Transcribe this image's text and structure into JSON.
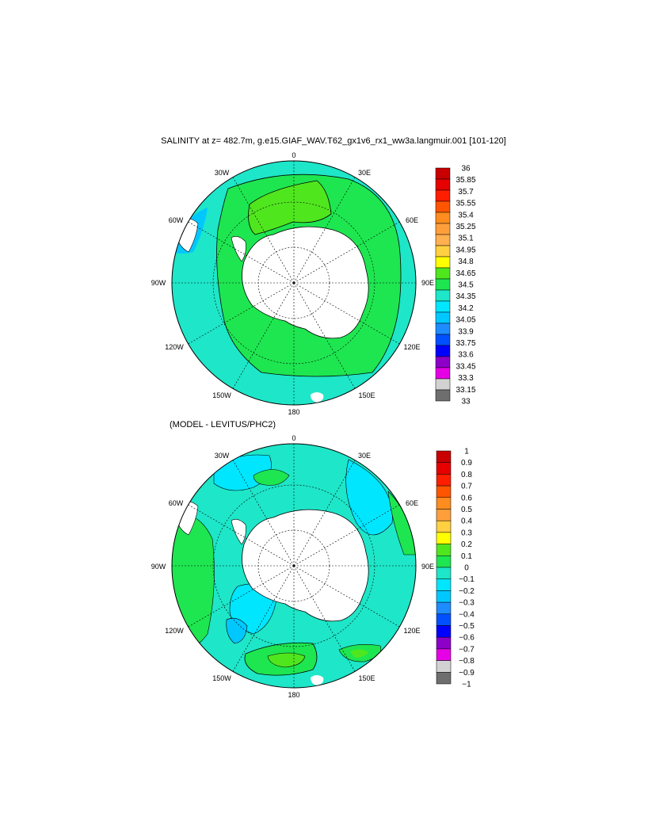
{
  "panels": [
    {
      "id": "salinity",
      "title": "SALINITY at z= 482.7m, g.e15.GIAF_WAV.T62_gx1v6_rx1_ww3a.langmuir.001 [101-120]",
      "lon_labels": [
        "0",
        "30E",
        "60E",
        "90E",
        "120E",
        "150E",
        "180",
        "150W",
        "120W",
        "90W",
        "60W",
        "30W"
      ],
      "colorbar": {
        "labels": [
          "36",
          "35.85",
          "35.7",
          "35.55",
          "35.4",
          "35.25",
          "35.1",
          "34.95",
          "34.8",
          "34.65",
          "34.5",
          "34.35",
          "34.2",
          "34.05",
          "33.9",
          "33.75",
          "33.6",
          "33.45",
          "33.3",
          "33.15",
          "33"
        ],
        "colors": [
          "#c80000",
          "#e60000",
          "#ff1e00",
          "#ff5500",
          "#ff8c1e",
          "#ff9f3c",
          "#ffb050",
          "#ffd040",
          "#ffff00",
          "#50e61e",
          "#1ee650",
          "#1ee6c8",
          "#00e6ff",
          "#00c8ff",
          "#1e8cff",
          "#0050ff",
          "#0000ff",
          "#8c00c8",
          "#e600e6",
          "#d2d2d2",
          "#6e6e6e"
        ]
      }
    },
    {
      "id": "difference",
      "title": "(MODEL - LEVITUS/PHC2)",
      "lon_labels": [
        "0",
        "30E",
        "60E",
        "90E",
        "120E",
        "150E",
        "180",
        "150W",
        "120W",
        "90W",
        "60W",
        "30W"
      ],
      "colorbar": {
        "labels": [
          "1",
          "0.9",
          "0.8",
          "0.7",
          "0.6",
          "0.5",
          "0.4",
          "0.3",
          "0.2",
          "0.1",
          "0",
          "−0.1",
          "−0.2",
          "−0.3",
          "−0.4",
          "−0.5",
          "−0.6",
          "−0.7",
          "−0.8",
          "−0.9",
          "−1"
        ],
        "colors": [
          "#c80000",
          "#e60000",
          "#ff1e00",
          "#ff5500",
          "#ff8c1e",
          "#ff9f3c",
          "#ffd040",
          "#ffff00",
          "#50e61e",
          "#1ee650",
          "#1ee6c8",
          "#00e6ff",
          "#00c8ff",
          "#1e8cff",
          "#0050ff",
          "#0000ff",
          "#8c00c8",
          "#e600e6",
          "#d2d2d2",
          "#6e6e6e"
        ]
      }
    }
  ],
  "colors": {
    "land": "#ffffff",
    "ocean_green": "#1ee650",
    "ocean_cyan": "#1ee6c8",
    "ocean_lightcyan": "#00e6ff",
    "ocean_lime": "#50e61e",
    "ocean_blue": "#00c8ff"
  }
}
